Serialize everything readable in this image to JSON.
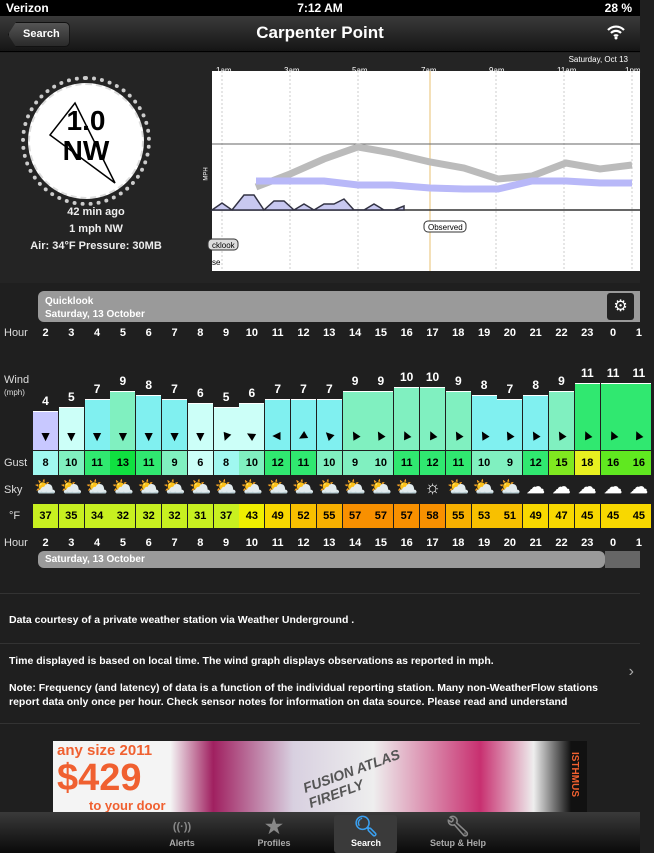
{
  "status": {
    "carrier": "Verizon",
    "time": "7:12 AM",
    "battery": "28 %"
  },
  "nav": {
    "back": "Search",
    "title": "Carpenter Point"
  },
  "current": {
    "speed": "1.0",
    "dir": "NW",
    "ago": "42 min ago",
    "summary": "1 mph NW",
    "air": "Air: 34°F  Pressure: 30MB"
  },
  "graph": {
    "date": "Saturday, Oct 13",
    "times": [
      "1am",
      "3am",
      "5am",
      "7am",
      "9am",
      "11am",
      "1pm"
    ],
    "ylabel": "MPH",
    "observed": "Observed",
    "quicklook": "cklook",
    "legend2": "se"
  },
  "quicklook": {
    "title": "Quicklook",
    "date": "Saturday, 13 October",
    "bottom_date": "Saturday, 13 October"
  },
  "labels": {
    "hour": "Hour",
    "wind": "Wind",
    "wind_unit": "(mph)",
    "gust": "Gust",
    "sky": "Sky",
    "temp": "°F"
  },
  "table": {
    "hours": [
      "2",
      "3",
      "4",
      "5",
      "6",
      "7",
      "8",
      "9",
      "10",
      "11",
      "12",
      "13",
      "14",
      "15",
      "16",
      "17",
      "18",
      "19",
      "20",
      "21",
      "22",
      "23",
      "0",
      "1"
    ],
    "wind": [
      4,
      5,
      7,
      9,
      8,
      7,
      6,
      5,
      6,
      7,
      7,
      7,
      9,
      9,
      10,
      10,
      9,
      8,
      7,
      8,
      9,
      11,
      11,
      11
    ],
    "wind_dir_deg": [
      180,
      180,
      180,
      180,
      180,
      180,
      180,
      200,
      300,
      270,
      240,
      315,
      330,
      330,
      335,
      335,
      330,
      330,
      330,
      330,
      330,
      335,
      335,
      335
    ],
    "gust": [
      8,
      10,
      11,
      13,
      11,
      9,
      6,
      8,
      10,
      12,
      11,
      10,
      9,
      10,
      11,
      12,
      11,
      10,
      9,
      12,
      15,
      18,
      16,
      16
    ],
    "sky": [
      "partly-sunny",
      "partly-sunny",
      "partly-sunny",
      "partly-sunny",
      "partly-sunny",
      "partly-sunny",
      "partly-sunny",
      "partly-sunny",
      "partly-sunny",
      "partly-sunny",
      "partly-sunny",
      "partly-sunny",
      "partly-sunny",
      "partly-sunny",
      "partly-sunny",
      "sunny",
      "partly-sunny",
      "partly-sunny",
      "mostly-cloudy",
      "cloudy",
      "cloudy",
      "cloudy",
      "cloudy",
      "cloudy"
    ],
    "temp": [
      37,
      35,
      34,
      32,
      32,
      32,
      31,
      37,
      43,
      49,
      52,
      55,
      57,
      57,
      57,
      58,
      55,
      53,
      51,
      49,
      47,
      45,
      45,
      45
    ]
  },
  "notes": {
    "courtesy": "Data courtesy of a private weather station via  Weather Underground .",
    "time": "Time displayed is based on local time. The wind graph displays observations as reported in mph.",
    "freq": "Note: Frequency (and latency) of data is a function of the individual reporting station. Many non-WeatherFlow stations report data only once per hour. Check sensor notes for information on data source. Please read and understand"
  },
  "ad": {
    "line1": "any size 2011",
    "price": "$429",
    "line3": "to your door",
    "brands": "FUSION ATLAS FIREFLY",
    "maker": "ISTHMUS"
  },
  "tabs": [
    {
      "label": "Alerts",
      "icon": "wifi-icon"
    },
    {
      "label": "Profiles",
      "icon": "star-icon"
    },
    {
      "label": "Search",
      "icon": "search-icon"
    },
    {
      "label": "Setup & Help",
      "icon": "wrench-icon"
    }
  ],
  "active_tab": "Search"
}
